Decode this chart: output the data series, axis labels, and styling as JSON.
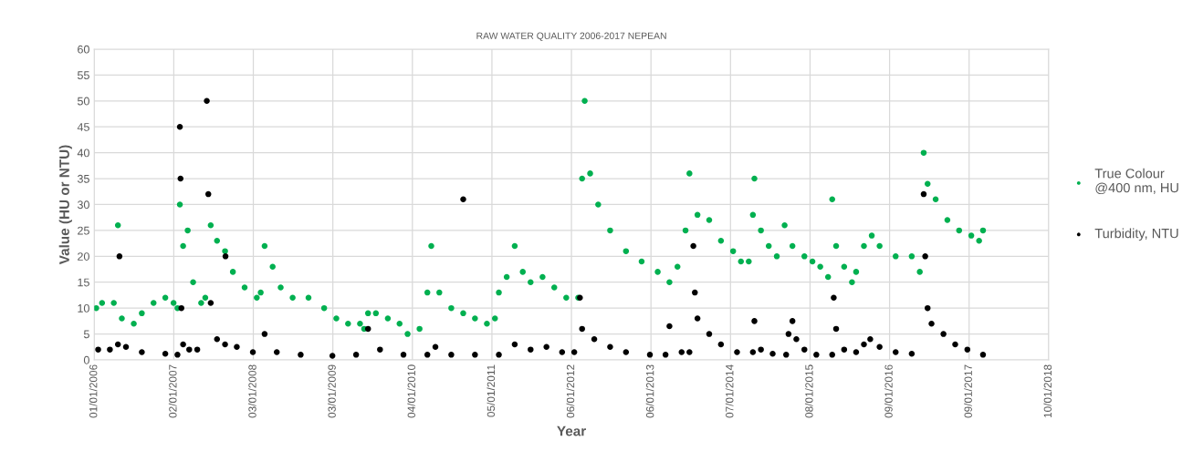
{
  "chart_data": {
    "type": "scatter",
    "title": "RAW WATER QUALITY 2006-2017 NEPEAN",
    "xlabel": "Year",
    "ylabel": "Value (HU or NTU)",
    "xlim": [
      "2006-01-01",
      "2018-01-10"
    ],
    "xticks": [
      {
        "value": "2006-01-01",
        "label": "01/01/2006"
      },
      {
        "value": "2007-01-02",
        "label": "02/01/2007"
      },
      {
        "value": "2008-01-03",
        "label": "03/01/2008"
      },
      {
        "value": "2009-01-03",
        "label": "03/01/2009"
      },
      {
        "value": "2010-01-04",
        "label": "04/01/2010"
      },
      {
        "value": "2011-01-05",
        "label": "05/01/2011"
      },
      {
        "value": "2012-01-06",
        "label": "06/01/2012"
      },
      {
        "value": "2013-01-06",
        "label": "06/01/2013"
      },
      {
        "value": "2014-01-07",
        "label": "07/01/2014"
      },
      {
        "value": "2015-01-08",
        "label": "08/01/2015"
      },
      {
        "value": "2016-01-09",
        "label": "09/01/2016"
      },
      {
        "value": "2017-01-09",
        "label": "09/01/2017"
      },
      {
        "value": "2018-01-10",
        "label": "10/01/2018"
      }
    ],
    "ylim": [
      0,
      60
    ],
    "yticks": [
      0,
      5,
      10,
      15,
      20,
      25,
      30,
      35,
      40,
      45,
      50,
      55,
      60
    ],
    "grid": true,
    "legend": "right",
    "marker": "circle",
    "series": [
      {
        "name": "True Colour @400 nm, HU",
        "color": "#00b050",
        "x": [
          "2006-01-10",
          "2006-02-06",
          "2006-04-01",
          "2006-04-20",
          "2006-05-08",
          "2006-07-02",
          "2006-08-08",
          "2006-10-01",
          "2006-11-24",
          "2007-01-01",
          "2007-01-19",
          "2007-01-30",
          "2007-02-14",
          "2007-03-07",
          "2007-04-01",
          "2007-05-08",
          "2007-05-27",
          "2007-06-21",
          "2007-07-20",
          "2007-08-26",
          "2007-10-01",
          "2007-11-24",
          "2008-01-19",
          "2008-02-06",
          "2008-02-24",
          "2008-04-01",
          "2008-05-08",
          "2008-07-02",
          "2008-09-13",
          "2008-11-24",
          "2009-01-19",
          "2009-03-14",
          "2009-05-08",
          "2009-05-27",
          "2009-06-14",
          "2009-07-20",
          "2009-09-13",
          "2009-11-06",
          "2009-12-13",
          "2010-02-06",
          "2010-03-14",
          "2010-04-01",
          "2010-05-08",
          "2010-07-02",
          "2010-08-26",
          "2010-10-19",
          "2010-12-13",
          "2011-01-19",
          "2011-02-06",
          "2011-03-14",
          "2011-04-20",
          "2011-05-27",
          "2011-07-02",
          "2011-08-26",
          "2011-10-19",
          "2011-12-13",
          "2012-02-06",
          "2012-02-24",
          "2012-03-07",
          "2012-04-01",
          "2012-05-08",
          "2012-07-02",
          "2012-09-13",
          "2012-11-24",
          "2013-02-06",
          "2013-04-01",
          "2013-05-08",
          "2013-06-14",
          "2013-07-02",
          "2013-08-08",
          "2013-10-01",
          "2013-11-24",
          "2014-01-19",
          "2014-02-24",
          "2014-04-01",
          "2014-04-20",
          "2014-04-27",
          "2014-05-27",
          "2014-07-02",
          "2014-08-08",
          "2014-09-13",
          "2014-10-19",
          "2014-12-13",
          "2015-01-19",
          "2015-02-24",
          "2015-04-01",
          "2015-04-20",
          "2015-05-08",
          "2015-06-14",
          "2015-07-20",
          "2015-08-08",
          "2015-09-13",
          "2015-10-19",
          "2015-11-24",
          "2016-02-06",
          "2016-04-20",
          "2016-05-27",
          "2016-06-14",
          "2016-07-02",
          "2016-08-08",
          "2016-10-01",
          "2016-11-24",
          "2017-01-19",
          "2017-02-24",
          "2017-03-14"
        ],
        "values": [
          10,
          11,
          11,
          26,
          8,
          7,
          9,
          11,
          12,
          11,
          10,
          30,
          22,
          25,
          15,
          11,
          12,
          26,
          23,
          21,
          17,
          14,
          12,
          13,
          22,
          18,
          14,
          12,
          12,
          10,
          8,
          7,
          7,
          6,
          9,
          9,
          8,
          7,
          5,
          6,
          13,
          22,
          13,
          10,
          9,
          8,
          7,
          8,
          13,
          16,
          22,
          17,
          15,
          16,
          14,
          12,
          12,
          35,
          50,
          36,
          30,
          25,
          21,
          19,
          17,
          15,
          18,
          25,
          36,
          28,
          27,
          23,
          21,
          19,
          19,
          28,
          35,
          25,
          22,
          20,
          26,
          22,
          20,
          19,
          18,
          16,
          31,
          22,
          18,
          15,
          17,
          22,
          24,
          22,
          20,
          20,
          17,
          40,
          34,
          31,
          27,
          25,
          24,
          23,
          25
        ]
      },
      {
        "name": "Turbidity, NTU",
        "color": "#000000",
        "x": [
          "2006-01-19",
          "2006-03-14",
          "2006-04-20",
          "2006-04-27",
          "2006-05-27",
          "2006-08-08",
          "2006-11-24",
          "2007-01-19",
          "2007-01-30",
          "2007-02-02",
          "2007-02-06",
          "2007-02-14",
          "2007-03-14",
          "2007-04-20",
          "2007-06-03",
          "2007-06-10",
          "2007-06-21",
          "2007-07-20",
          "2007-08-26",
          "2007-08-28",
          "2007-10-19",
          "2008-01-01",
          "2008-02-24",
          "2008-04-20",
          "2008-08-08",
          "2009-01-01",
          "2009-04-20",
          "2009-06-14",
          "2009-08-08",
          "2009-11-24",
          "2010-03-14",
          "2010-04-20",
          "2010-07-02",
          "2010-08-26",
          "2010-10-19",
          "2011-02-06",
          "2011-04-20",
          "2011-07-02",
          "2011-09-13",
          "2011-11-24",
          "2012-01-19",
          "2012-02-14",
          "2012-02-24",
          "2012-04-20",
          "2012-07-02",
          "2012-09-13",
          "2013-01-01",
          "2013-03-14",
          "2013-04-01",
          "2013-05-27",
          "2013-07-02",
          "2013-07-20",
          "2013-07-27",
          "2013-08-08",
          "2013-10-01",
          "2013-11-24",
          "2014-02-06",
          "2014-04-20",
          "2014-04-27",
          "2014-05-27",
          "2014-07-20",
          "2014-09-20",
          "2014-10-01",
          "2014-10-19",
          "2014-11-06",
          "2014-12-13",
          "2015-02-06",
          "2015-04-20",
          "2015-04-27",
          "2015-05-08",
          "2015-06-14",
          "2015-08-08",
          "2015-09-13",
          "2015-10-12",
          "2015-11-24",
          "2016-02-06",
          "2016-04-20",
          "2016-06-14",
          "2016-06-21",
          "2016-07-02",
          "2016-07-20",
          "2016-09-13",
          "2016-11-06",
          "2017-01-01",
          "2017-03-14"
        ],
        "values": [
          2,
          2,
          3,
          20,
          2.5,
          1.5,
          1.2,
          1,
          45,
          35,
          10,
          3,
          2,
          2,
          50,
          32,
          11,
          4,
          3,
          20,
          2.5,
          1.5,
          5,
          1.5,
          1,
          0.8,
          1,
          6,
          2,
          1,
          1,
          2.5,
          1,
          31,
          1,
          1,
          3,
          2,
          2.5,
          1.5,
          1.5,
          12,
          6,
          4,
          2.5,
          1.5,
          1,
          1,
          6.5,
          1.5,
          1.5,
          22,
          13,
          8,
          5,
          3,
          1.5,
          1.5,
          7.5,
          2,
          1.2,
          1,
          5,
          7.5,
          4,
          2,
          1,
          1,
          12,
          6,
          2,
          1.5,
          3,
          4,
          2.5,
          1.5,
          1.2,
          32,
          20,
          10,
          7,
          5,
          3,
          2,
          1
        ]
      }
    ]
  }
}
